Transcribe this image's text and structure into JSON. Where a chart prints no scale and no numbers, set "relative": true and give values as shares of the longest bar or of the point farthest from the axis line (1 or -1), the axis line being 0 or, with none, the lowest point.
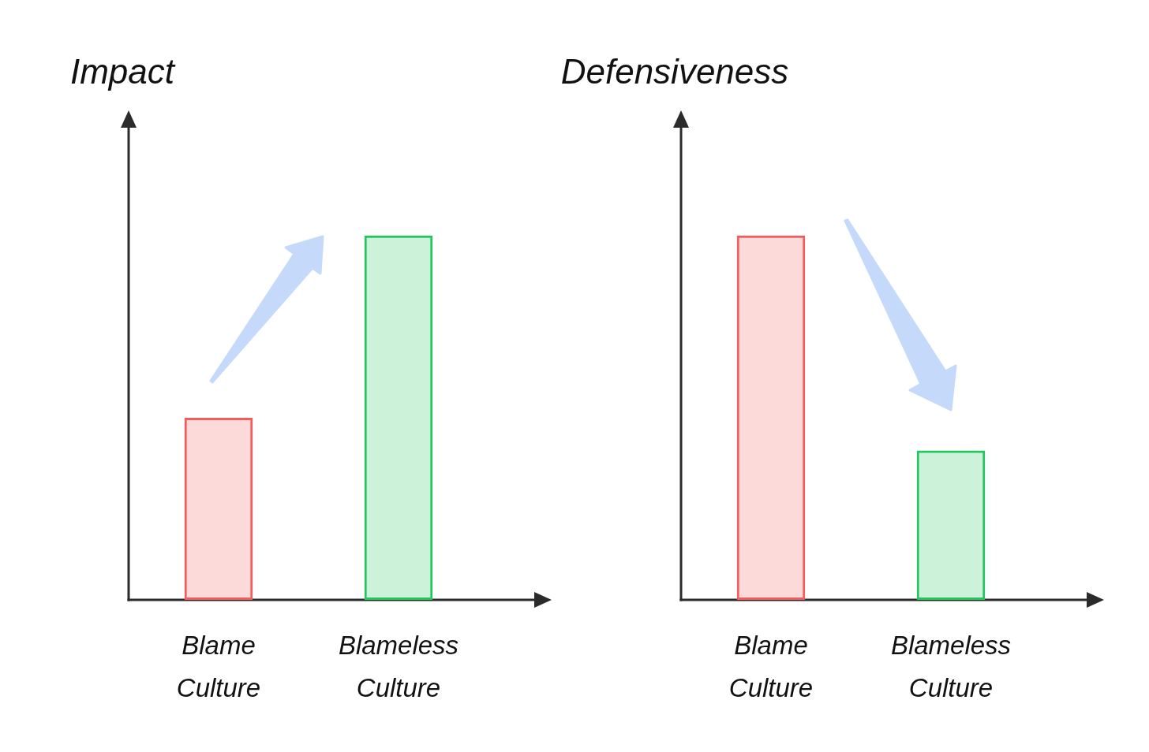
{
  "chart_data": [
    {
      "type": "bar",
      "ylabel": "Impact",
      "categories": [
        "Blame Culture",
        "Blameless Culture"
      ],
      "values": [
        0.5,
        1
      ],
      "colors": [
        "#f25c5c",
        "#22c55e"
      ],
      "relative": true
    },
    {
      "type": "bar",
      "ylabel": "Defensiveness",
      "categories": [
        "Blame Culture",
        "Blameless Culture"
      ],
      "values": [
        1,
        0.41
      ],
      "colors": [
        "#f25c5c",
        "#22c55e"
      ],
      "relative": true
    }
  ]
}
